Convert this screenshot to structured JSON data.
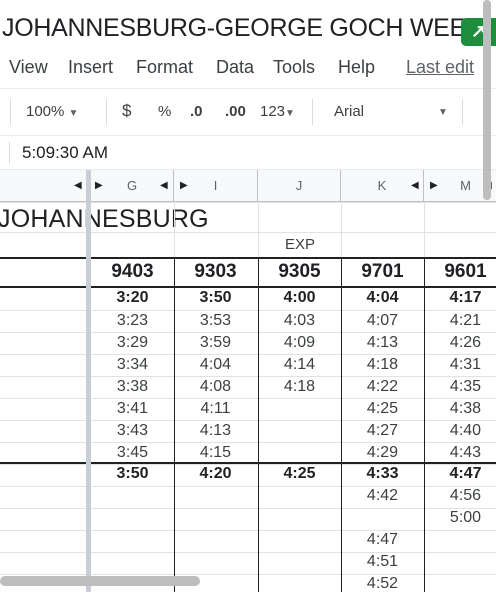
{
  "window": {
    "title": "JOHANNESBURG-GEORGE GOCH WEEK"
  },
  "menu": {
    "items": [
      "View",
      "Insert",
      "Format",
      "Data",
      "Tools",
      "Help"
    ],
    "last_edit": "Last edit"
  },
  "toolbar": {
    "zoom": "100%",
    "currency": "$",
    "percent": "%",
    "decrease_decimals": ".0",
    "increase_decimals": ".00",
    "more_formats": "123",
    "font": "Arial"
  },
  "formula_bar": {
    "value": "5:09:30 AM"
  },
  "columns": [
    "G",
    "I",
    "J",
    "K",
    "M"
  ],
  "sheet": {
    "title": "JOHANNESBURG",
    "exp_label": "EXP",
    "trip_numbers": [
      "9403",
      "9303",
      "9305",
      "9701",
      "9601"
    ],
    "rows": [
      [
        "3:20",
        "3:50",
        "4:00",
        "4:04",
        "4:17"
      ],
      [
        "3:23",
        "3:53",
        "4:03",
        "4:07",
        "4:21"
      ],
      [
        "3:29",
        "3:59",
        "4:09",
        "4:13",
        "4:26"
      ],
      [
        "3:34",
        "4:04",
        "4:14",
        "4:18",
        "4:31"
      ],
      [
        "3:38",
        "4:08",
        "4:18",
        "4:22",
        "4:35"
      ],
      [
        "3:41",
        "4:11",
        "",
        "4:25",
        "4:38"
      ],
      [
        "3:43",
        "4:13",
        "",
        "4:27",
        "4:40"
      ],
      [
        "3:45",
        "4:15",
        "",
        "4:29",
        "4:43"
      ],
      [
        "3:50",
        "4:20",
        "4:25",
        "4:33",
        "4:47"
      ],
      [
        "",
        "",
        "",
        "4:42",
        "4:56"
      ],
      [
        "",
        "",
        "",
        "",
        "5:00"
      ],
      [
        "",
        "",
        "",
        "4:47",
        ""
      ],
      [
        "",
        "",
        "",
        "4:51",
        ""
      ],
      [
        "",
        "",
        "",
        "4:52",
        ""
      ]
    ]
  }
}
